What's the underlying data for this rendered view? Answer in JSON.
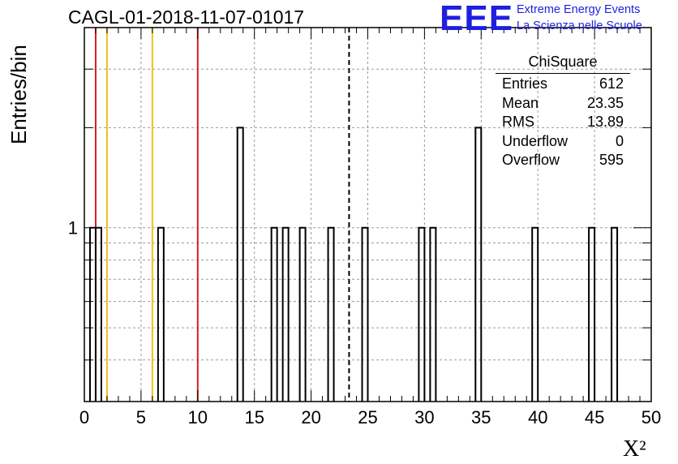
{
  "header": {
    "title": "CAGL-01-2018-11-07-01017"
  },
  "logo": {
    "mark": "EEE",
    "line1": "Extreme Energy Events",
    "line2": "La Scienza nelle Scuole",
    "color": "#1f1fe0"
  },
  "stats_box": {
    "name": "ChiSquare",
    "rows": [
      {
        "label": "Entries",
        "value": "612"
      },
      {
        "label": "Mean",
        "value": "23.35"
      },
      {
        "label": "RMS",
        "value": "13.89"
      },
      {
        "label": "Underflow",
        "value": "0"
      },
      {
        "label": "Overflow",
        "value": "595"
      }
    ]
  },
  "chart_data": {
    "type": "bar",
    "title": "CAGL-01-2018-11-07-01017",
    "xlabel": "X²",
    "ylabel": "Entries/bin",
    "xlim": [
      0,
      50
    ],
    "y_scale": "log",
    "ylim": [
      0.3,
      4
    ],
    "bin_width": 0.5,
    "x_ticks": [
      0,
      5,
      10,
      15,
      20,
      25,
      30,
      35,
      40,
      45,
      50
    ],
    "y_tick_labels": [
      "1"
    ],
    "grid": true,
    "bins": [
      {
        "x": 0.5,
        "count": 1
      },
      {
        "x": 1.0,
        "count": 1
      },
      {
        "x": 6.5,
        "count": 1
      },
      {
        "x": 13.5,
        "count": 2
      },
      {
        "x": 16.5,
        "count": 1
      },
      {
        "x": 17.5,
        "count": 1
      },
      {
        "x": 19.0,
        "count": 1
      },
      {
        "x": 21.5,
        "count": 1
      },
      {
        "x": 24.5,
        "count": 1
      },
      {
        "x": 29.5,
        "count": 1
      },
      {
        "x": 30.5,
        "count": 1
      },
      {
        "x": 34.5,
        "count": 2
      },
      {
        "x": 39.5,
        "count": 1
      },
      {
        "x": 44.5,
        "count": 1
      },
      {
        "x": 46.5,
        "count": 1
      }
    ],
    "vertical_lines": [
      {
        "x": 1.0,
        "color": "#d62020",
        "style": "solid"
      },
      {
        "x": 2.0,
        "color": "#f0c020",
        "style": "solid"
      },
      {
        "x": 6.0,
        "color": "#f0c020",
        "style": "solid"
      },
      {
        "x": 10.0,
        "color": "#d62020",
        "style": "solid"
      },
      {
        "x": 23.35,
        "color": "#000000",
        "style": "dashed"
      }
    ]
  }
}
